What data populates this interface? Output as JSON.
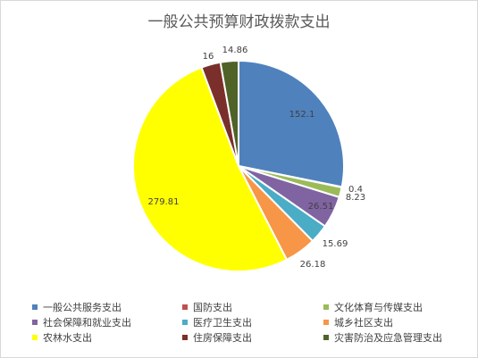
{
  "chart_data": {
    "type": "pie",
    "title": "一般公共预算财政拨款支出",
    "legend_position": "bottom",
    "slices": [
      {
        "name": "一般公共服务支出",
        "value": 152.1,
        "label": "152.1",
        "color": "#4f81bd"
      },
      {
        "name": "国防支出",
        "value": 0.4,
        "label": "0.4",
        "color": "#c0504d"
      },
      {
        "name": "文化体育与传媒支出",
        "value": 8.23,
        "label": "8.23",
        "color": "#9bbb59"
      },
      {
        "name": "社会保障和就业支出",
        "value": 26.51,
        "label": "26.51",
        "color": "#8064a2"
      },
      {
        "name": "医疗卫生支出",
        "value": 15.69,
        "label": "15.69",
        "color": "#4bacc6"
      },
      {
        "name": "城乡社区支出",
        "value": 26.18,
        "label": "26.18",
        "color": "#f79646"
      },
      {
        "name": "农林水支出",
        "value": 279.81,
        "label": "279.81",
        "color": "#ffff00"
      },
      {
        "name": "住房保障支出",
        "value": 16,
        "label": "16",
        "color": "#7b2f2a"
      },
      {
        "name": "灾害防治及应急管理支出",
        "value": 14.86,
        "label": "14.86",
        "color": "#4f6228"
      }
    ]
  }
}
